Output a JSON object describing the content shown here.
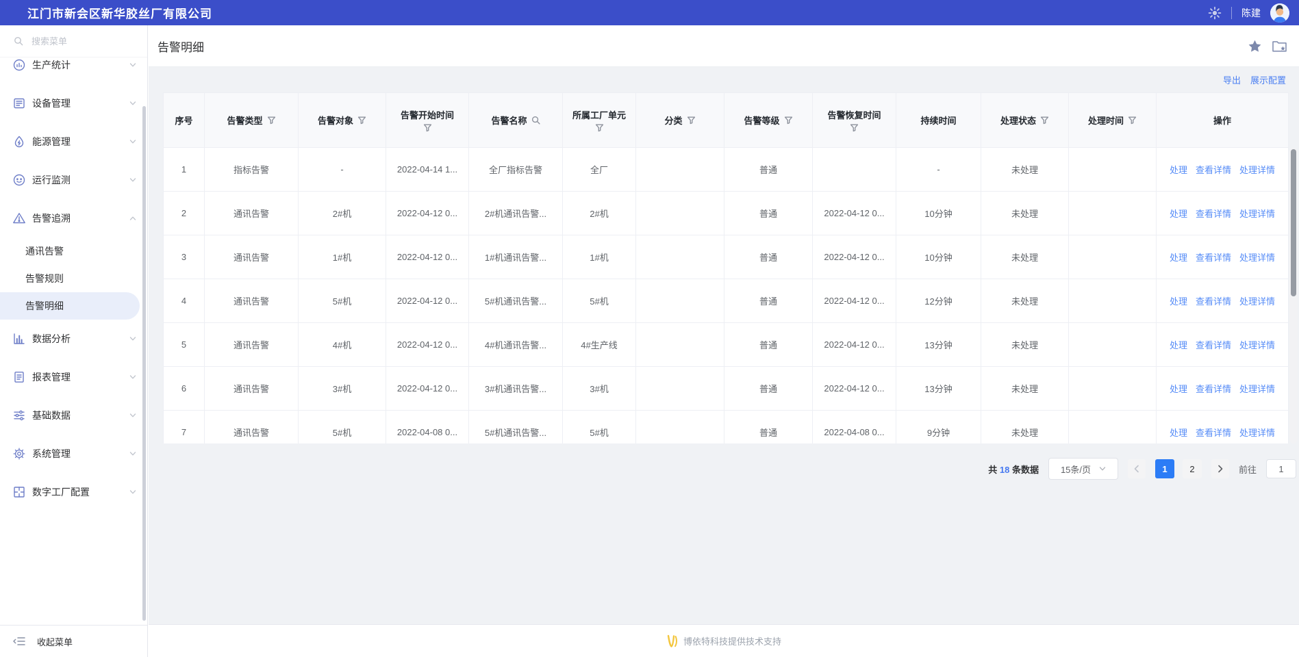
{
  "colors": {
    "header_bg": "#3b4ec9",
    "accent_link": "#4c80f2",
    "active_page_bg": "#2b7cf6",
    "selected_menu_bg": "#e9eefa",
    "footer_logo_yellow": "#f3c63e"
  },
  "header": {
    "company": "江门市新会区新华胶丝厂有限公司",
    "username": "陈建"
  },
  "sidebar": {
    "search_placeholder": "搜索菜单",
    "collapse_label": "收起菜单",
    "items": [
      {
        "key": "production-stats",
        "label": "生产统计",
        "icon": "stats"
      },
      {
        "key": "device-management",
        "label": "设备管理",
        "icon": "device"
      },
      {
        "key": "energy-management",
        "label": "能源管理",
        "icon": "energy"
      },
      {
        "key": "operation-monitoring",
        "label": "运行监测",
        "icon": "monitor"
      },
      {
        "key": "alarm-tracing",
        "label": "告警追溯",
        "icon": "alarm",
        "expanded": true,
        "children": [
          {
            "key": "communication-alarm",
            "label": "通讯告警"
          },
          {
            "key": "alarm-rules",
            "label": "告警规则"
          },
          {
            "key": "alarm-detail",
            "label": "告警明细",
            "active": true
          }
        ]
      },
      {
        "key": "data-analysis",
        "label": "数据分析",
        "icon": "analysis"
      },
      {
        "key": "report-management",
        "label": "报表管理",
        "icon": "report"
      },
      {
        "key": "basic-data",
        "label": "基础数据",
        "icon": "basedata"
      },
      {
        "key": "system-management",
        "label": "系统管理",
        "icon": "system"
      },
      {
        "key": "digital-factory-config",
        "label": "数字工厂配置",
        "icon": "factory"
      }
    ]
  },
  "page": {
    "title": "告警明细"
  },
  "toolbar": {
    "export_label": "导出",
    "display_config_label": "展示配置"
  },
  "table": {
    "columns": [
      {
        "key": "seq",
        "label": "序号"
      },
      {
        "key": "alarm-type",
        "label": "告警类型",
        "icon": "filter"
      },
      {
        "key": "alarm-object",
        "label": "告警对象",
        "icon": "filter"
      },
      {
        "key": "alarm-start-time",
        "label": "告警开始时间",
        "icon": "filter",
        "stacked": true
      },
      {
        "key": "alarm-name",
        "label": "告警名称",
        "icon": "search"
      },
      {
        "key": "factory-unit",
        "label": "所属工厂单元",
        "icon": "filter",
        "stacked": true
      },
      {
        "key": "category",
        "label": "分类",
        "icon": "filter"
      },
      {
        "key": "alarm-level",
        "label": "告警等级",
        "icon": "filter"
      },
      {
        "key": "alarm-recover-time",
        "label": "告警恢复时间",
        "icon": "filter",
        "stacked": true
      },
      {
        "key": "duration",
        "label": "持续时间"
      },
      {
        "key": "handle-status",
        "label": "处理状态",
        "icon": "filter"
      },
      {
        "key": "handle-time",
        "label": "处理时间",
        "icon": "filter"
      },
      {
        "key": "actions",
        "label": "操作"
      }
    ],
    "rows": [
      [
        "1",
        "指标告警",
        "-",
        "2022-04-14 1...",
        "全厂指标告警",
        "全厂",
        "",
        "普通",
        "",
        "-",
        "未处理",
        ""
      ],
      [
        "2",
        "通讯告警",
        "2#机",
        "2022-04-12 0...",
        "2#机通讯告警...",
        "2#机",
        "",
        "普通",
        "2022-04-12 0...",
        "10分钟",
        "未处理",
        ""
      ],
      [
        "3",
        "通讯告警",
        "1#机",
        "2022-04-12 0...",
        "1#机通讯告警...",
        "1#机",
        "",
        "普通",
        "2022-04-12 0...",
        "10分钟",
        "未处理",
        ""
      ],
      [
        "4",
        "通讯告警",
        "5#机",
        "2022-04-12 0...",
        "5#机通讯告警...",
        "5#机",
        "",
        "普通",
        "2022-04-12 0...",
        "12分钟",
        "未处理",
        ""
      ],
      [
        "5",
        "通讯告警",
        "4#机",
        "2022-04-12 0...",
        "4#机通讯告警...",
        "4#生产线",
        "",
        "普通",
        "2022-04-12 0...",
        "13分钟",
        "未处理",
        ""
      ],
      [
        "6",
        "通讯告警",
        "3#机",
        "2022-04-12 0...",
        "3#机通讯告警...",
        "3#机",
        "",
        "普通",
        "2022-04-12 0...",
        "13分钟",
        "未处理",
        ""
      ],
      [
        "7",
        "通讯告警",
        "5#机",
        "2022-04-08 0...",
        "5#机通讯告警...",
        "5#机",
        "",
        "普通",
        "2022-04-08 0...",
        "9分钟",
        "未处理",
        ""
      ]
    ],
    "row_actions": [
      {
        "key": "handle",
        "label": "处理"
      },
      {
        "key": "view-detail",
        "label": "查看详情"
      },
      {
        "key": "handle-detail",
        "label": "处理详情"
      }
    ]
  },
  "pagination": {
    "total_prefix": "共",
    "total": "18",
    "total_suffix": "条数据",
    "page_size": "15条/页",
    "pages": [
      "1",
      "2"
    ],
    "current_page": "1",
    "goto_label": "前往",
    "goto_value": "1"
  },
  "footer": {
    "support_text": "博依特科技提供技术支持"
  }
}
